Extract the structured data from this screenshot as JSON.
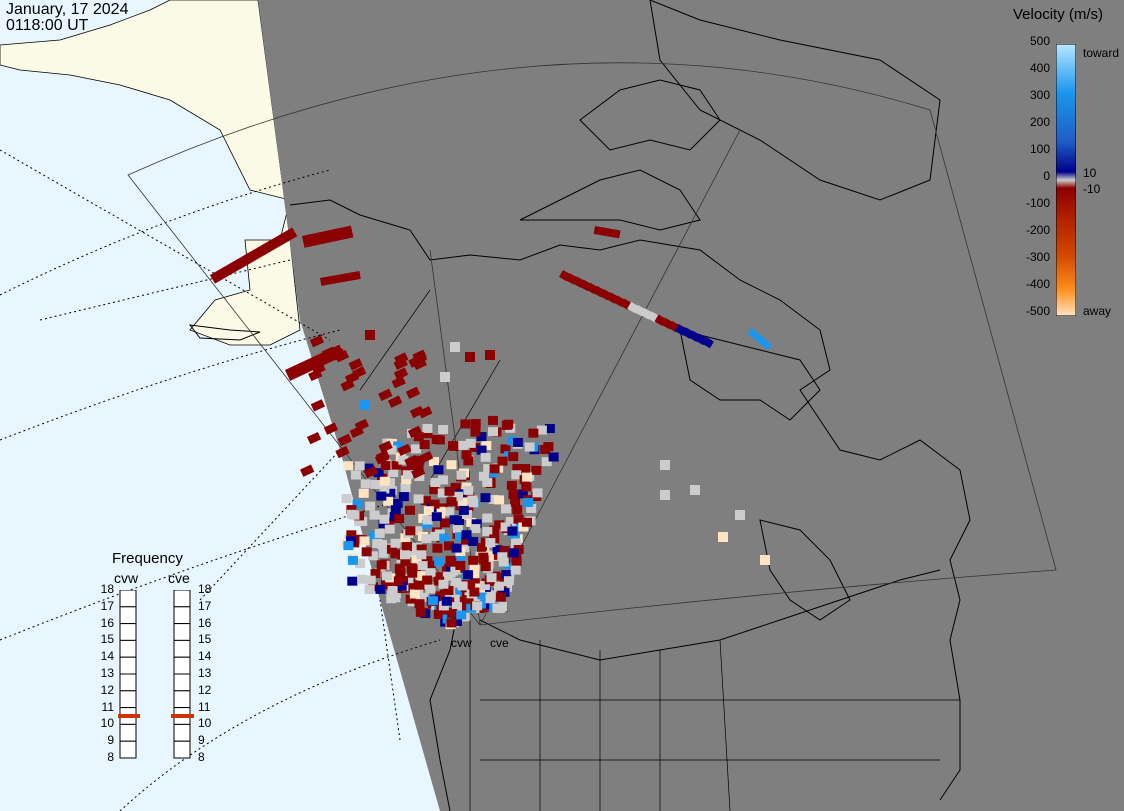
{
  "header": {
    "date": "January, 17 2024",
    "time": "0118:00 UT"
  },
  "velocity_legend": {
    "title": "Velocity (m/s)",
    "ticks": [
      "500",
      "400",
      "300",
      "200",
      "100",
      "0",
      "-100",
      "-200",
      "-300",
      "-400",
      "-500"
    ],
    "toward_label": "toward",
    "away_label": "away",
    "small_pos": "10",
    "small_neg": "-10",
    "colors": [
      "#ffe4c4",
      "#ff8c1a",
      "#d14a00",
      "#8b0000",
      "#cccccc",
      "#00008b",
      "#1e5cc8",
      "#1a96ee",
      "#b8e6ff"
    ]
  },
  "frequency_panel": {
    "title": "Frequency",
    "radars": [
      {
        "name": "cvw",
        "frequency_mhz": 11
      },
      {
        "name": "cve",
        "frequency_mhz": 11
      }
    ],
    "scale": [
      "18",
      "17",
      "16",
      "15",
      "14",
      "13",
      "12",
      "11",
      "10",
      "9",
      "8"
    ],
    "marker_color": "#cc3300"
  },
  "map": {
    "site_labels": [
      "cvw",
      "cve"
    ],
    "land_color": "#7f7f7f",
    "ocean_color": "#e8f6ff",
    "daylight_land_color": "#fafae6"
  }
}
